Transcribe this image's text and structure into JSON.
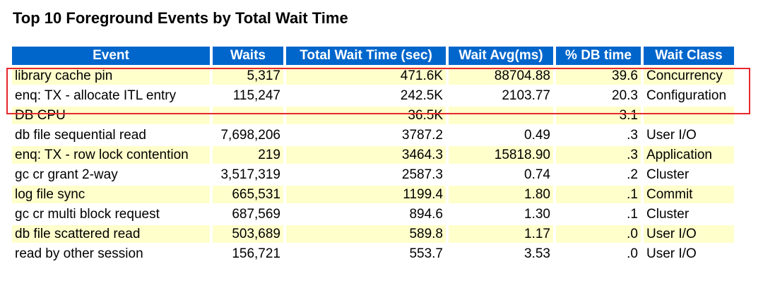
{
  "report": {
    "title": "Top 10 Foreground Events by Total Wait Time"
  },
  "table": {
    "headers": {
      "event": "Event",
      "waits": "Waits",
      "total_wait_time": "Total Wait Time (sec)",
      "wait_avg": "Wait Avg(ms)",
      "pct_db_time": "% DB time",
      "wait_class": "Wait Class"
    },
    "rows": [
      {
        "event": "library cache pin",
        "waits": "5,317",
        "total_wait_time": "471.6K",
        "wait_avg": "88704.88",
        "pct_db_time": "39.6",
        "wait_class": "Concurrency"
      },
      {
        "event": "enq: TX - allocate ITL entry",
        "waits": "115,247",
        "total_wait_time": "242.5K",
        "wait_avg": "2103.77",
        "pct_db_time": "20.3",
        "wait_class": "Configuration"
      },
      {
        "event": "DB CPU",
        "waits": "",
        "total_wait_time": "36.5K",
        "wait_avg": "",
        "pct_db_time": "3.1",
        "wait_class": ""
      },
      {
        "event": "db file sequential read",
        "waits": "7,698,206",
        "total_wait_time": "3787.2",
        "wait_avg": "0.49",
        "pct_db_time": ".3",
        "wait_class": "User I/O"
      },
      {
        "event": "enq: TX - row lock contention",
        "waits": "219",
        "total_wait_time": "3464.3",
        "wait_avg": "15818.90",
        "pct_db_time": ".3",
        "wait_class": "Application"
      },
      {
        "event": "gc cr grant 2-way",
        "waits": "3,517,319",
        "total_wait_time": "2587.3",
        "wait_avg": "0.74",
        "pct_db_time": ".2",
        "wait_class": "Cluster"
      },
      {
        "event": "log file sync",
        "waits": "665,531",
        "total_wait_time": "1199.4",
        "wait_avg": "1.80",
        "pct_db_time": ".1",
        "wait_class": "Commit"
      },
      {
        "event": "gc cr multi block request",
        "waits": "687,569",
        "total_wait_time": "894.6",
        "wait_avg": "1.30",
        "pct_db_time": ".1",
        "wait_class": "Cluster"
      },
      {
        "event": "db file scattered read",
        "waits": "503,689",
        "total_wait_time": "589.8",
        "wait_avg": "1.17",
        "pct_db_time": ".0",
        "wait_class": "User I/O"
      },
      {
        "event": "read by other session",
        "waits": "156,721",
        "total_wait_time": "553.7",
        "wait_avg": "3.53",
        "pct_db_time": ".0",
        "wait_class": "User I/O"
      }
    ]
  },
  "colors": {
    "header_bg": "#0066cc",
    "odd_row_bg": "#ffffcc",
    "highlight_border": "#e8262b"
  }
}
